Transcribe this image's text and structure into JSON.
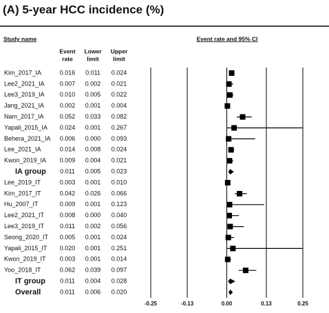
{
  "chart_data": {
    "type": "forest",
    "title": "(A) 5-year HCC incidence (%)",
    "left_header": "Study name",
    "plot_header": "Event rate and 95% CI",
    "columns": [
      [
        "Event",
        "rate"
      ],
      [
        "Lower",
        "limit"
      ],
      [
        "Upper",
        "limit"
      ]
    ],
    "categories": [
      "Kim_2017_IA",
      "Lee2_2021_IA",
      "Lee3_2019_IA",
      "Jang_2021_IA",
      "Nam_2017_IA",
      "Yapali_2015_IA",
      "Behera_2021_IA",
      "Lee_2021_IA",
      "Kwon_2019_IA",
      "IA group",
      "Lee_2019_IT",
      "Kim_2017_IT",
      "Hu_2007_IT",
      "Lee2_2021_IT",
      "Lee3_2019_IT",
      "Seong_2020_IT",
      "Yapali_2015_IT",
      "Kwon_2019_IT",
      "Yoo_2018_IT",
      "IT group",
      "Overall"
    ],
    "values": [
      0.016,
      0.007,
      0.01,
      0.002,
      0.052,
      0.024,
      0.006,
      0.014,
      0.009,
      0.011,
      0.003,
      0.042,
      0.009,
      0.008,
      0.011,
      0.005,
      0.02,
      0.003,
      0.062,
      0.011,
      0.011
    ],
    "value_labels": [
      "0.016",
      "0.007",
      "0.010",
      "0.002",
      "0.052",
      "0.024",
      "0.006",
      "0.014",
      "0.009",
      "0.011",
      "0.003",
      "0.042",
      "0.009",
      "0.008",
      "0.011",
      "0.005",
      "0.020",
      "0.003",
      "0.062",
      "0.011",
      "0.011"
    ],
    "lower": [
      0.011,
      0.002,
      0.005,
      0.001,
      0.033,
      0.001,
      0.0,
      0.008,
      0.004,
      0.005,
      0.001,
      0.026,
      0.001,
      0.0,
      0.002,
      0.001,
      0.001,
      0.001,
      0.039,
      0.004,
      0.006
    ],
    "lower_labels": [
      "0.011",
      "0.002",
      "0.005",
      "0.001",
      "0.033",
      "0.001",
      "0.000",
      "0.008",
      "0.004",
      "0.005",
      "0.001",
      "0.026",
      "0.001",
      "0.000",
      "0.002",
      "0.001",
      "0.001",
      "0.001",
      "0.039",
      "0.004",
      "0.006"
    ],
    "upper": [
      0.024,
      0.021,
      0.022,
      0.004,
      0.082,
      0.267,
      0.093,
      0.024,
      0.021,
      0.023,
      0.01,
      0.066,
      0.123,
      0.04,
      0.056,
      0.024,
      0.251,
      0.014,
      0.097,
      0.028,
      0.02
    ],
    "upper_labels": [
      "0.024",
      "0.021",
      "0.022",
      "0.004",
      "0.082",
      "0.267",
      "0.093",
      "0.024",
      "0.021",
      "0.023",
      "0.010",
      "0.066",
      "0.123",
      "0.040",
      "0.056",
      "0.024",
      "0.251",
      "0.014",
      "0.097",
      "0.028",
      "0.020"
    ],
    "diamond_rows": [
      9,
      19,
      20
    ],
    "xlim": [
      -0.25,
      0.25
    ],
    "xticks": [
      -0.25,
      -0.13,
      {
        "value": 0,
        "label": "0.00"
      },
      0.13,
      0.25
    ],
    "grid": true,
    "color": "#000000"
  }
}
